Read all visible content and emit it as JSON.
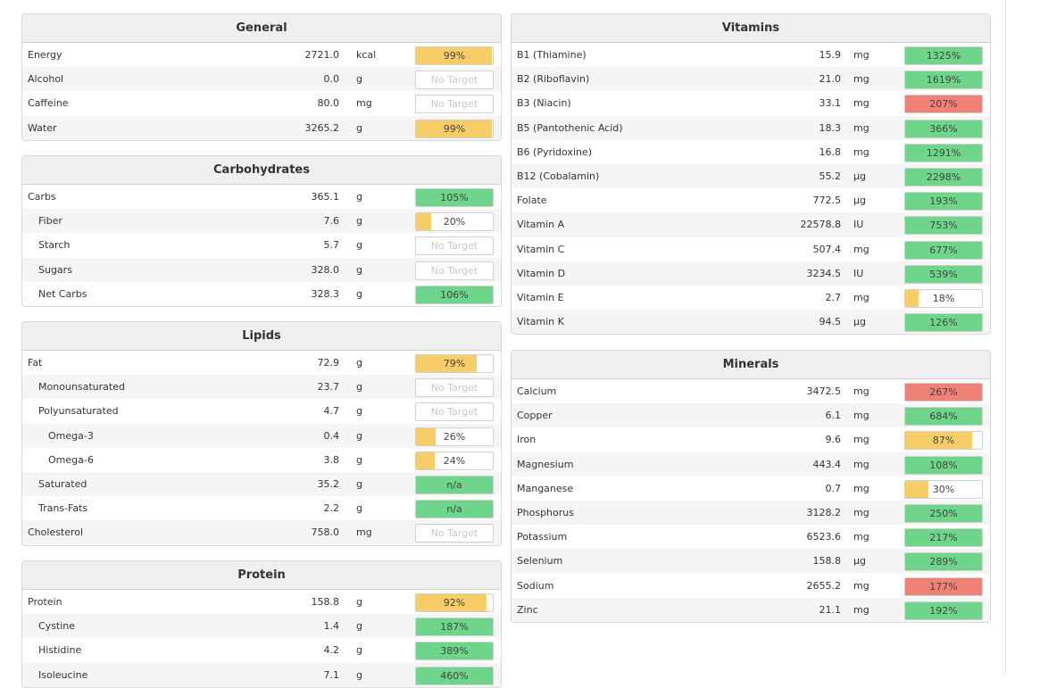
{
  "colors": {
    "green": "#6fd58a",
    "yellow": "#f7cd67",
    "red": "#ef8176"
  },
  "no_target_label": "No Target",
  "left": [
    {
      "title": "General",
      "rows": [
        {
          "name": "Energy",
          "amount": "2721.0",
          "unit": "kcal",
          "label": "99%",
          "fill": 0.99,
          "color": "yellow",
          "indent": 0
        },
        {
          "name": "Alcohol",
          "amount": "0.0",
          "unit": "g",
          "label": "No Target",
          "fill": 0,
          "color": "none",
          "indent": 0
        },
        {
          "name": "Caffeine",
          "amount": "80.0",
          "unit": "mg",
          "label": "No Target",
          "fill": 0,
          "color": "none",
          "indent": 0
        },
        {
          "name": "Water",
          "amount": "3265.2",
          "unit": "g",
          "label": "99%",
          "fill": 0.99,
          "color": "yellow",
          "indent": 0
        }
      ]
    },
    {
      "title": "Carbohydrates",
      "rows": [
        {
          "name": "Carbs",
          "amount": "365.1",
          "unit": "g",
          "label": "105%",
          "fill": 1,
          "color": "green",
          "indent": 0
        },
        {
          "name": "Fiber",
          "amount": "7.6",
          "unit": "g",
          "label": "20%",
          "fill": 0.2,
          "color": "yellow",
          "indent": 1
        },
        {
          "name": "Starch",
          "amount": "5.7",
          "unit": "g",
          "label": "No Target",
          "fill": 0,
          "color": "none",
          "indent": 1
        },
        {
          "name": "Sugars",
          "amount": "328.0",
          "unit": "g",
          "label": "No Target",
          "fill": 0,
          "color": "none",
          "indent": 1
        },
        {
          "name": "Net Carbs",
          "amount": "328.3",
          "unit": "g",
          "label": "106%",
          "fill": 1,
          "color": "green",
          "indent": 1
        }
      ]
    },
    {
      "title": "Lipids",
      "rows": [
        {
          "name": "Fat",
          "amount": "72.9",
          "unit": "g",
          "label": "79%",
          "fill": 0.79,
          "color": "yellow",
          "indent": 0
        },
        {
          "name": "Monounsaturated",
          "amount": "23.7",
          "unit": "g",
          "label": "No Target",
          "fill": 0,
          "color": "none",
          "indent": 1
        },
        {
          "name": "Polyunsaturated",
          "amount": "4.7",
          "unit": "g",
          "label": "No Target",
          "fill": 0,
          "color": "none",
          "indent": 1
        },
        {
          "name": "Omega-3",
          "amount": "0.4",
          "unit": "g",
          "label": "26%",
          "fill": 0.26,
          "color": "yellow",
          "indent": 2
        },
        {
          "name": "Omega-6",
          "amount": "3.8",
          "unit": "g",
          "label": "24%",
          "fill": 0.24,
          "color": "yellow",
          "indent": 2
        },
        {
          "name": "Saturated",
          "amount": "35.2",
          "unit": "g",
          "label": "n/a",
          "fill": 1,
          "color": "green",
          "indent": 1
        },
        {
          "name": "Trans-Fats",
          "amount": "2.2",
          "unit": "g",
          "label": "n/a",
          "fill": 1,
          "color": "green",
          "indent": 1
        },
        {
          "name": "Cholesterol",
          "amount": "758.0",
          "unit": "mg",
          "label": "No Target",
          "fill": 0,
          "color": "none",
          "indent": 0
        }
      ]
    },
    {
      "title": "Protein",
      "rows": [
        {
          "name": "Protein",
          "amount": "158.8",
          "unit": "g",
          "label": "92%",
          "fill": 0.92,
          "color": "yellow",
          "indent": 0
        },
        {
          "name": "Cystine",
          "amount": "1.4",
          "unit": "g",
          "label": "187%",
          "fill": 1,
          "color": "green",
          "indent": 1
        },
        {
          "name": "Histidine",
          "amount": "4.2",
          "unit": "g",
          "label": "389%",
          "fill": 1,
          "color": "green",
          "indent": 1
        },
        {
          "name": "Isoleucine",
          "amount": "7.1",
          "unit": "g",
          "label": "460%",
          "fill": 1,
          "color": "green",
          "indent": 1
        }
      ]
    }
  ],
  "right": [
    {
      "title": "Vitamins",
      "rows": [
        {
          "name": "B1 (Thiamine)",
          "amount": "15.9",
          "unit": "mg",
          "label": "1325%",
          "fill": 1,
          "color": "green",
          "indent": 0
        },
        {
          "name": "B2 (Riboflavin)",
          "amount": "21.0",
          "unit": "mg",
          "label": "1619%",
          "fill": 1,
          "color": "green",
          "indent": 0
        },
        {
          "name": "B3 (Niacin)",
          "amount": "33.1",
          "unit": "mg",
          "label": "207%",
          "fill": 1,
          "color": "red",
          "indent": 0
        },
        {
          "name": "B5 (Pantothenic Acid)",
          "amount": "18.3",
          "unit": "mg",
          "label": "366%",
          "fill": 1,
          "color": "green",
          "indent": 0
        },
        {
          "name": "B6 (Pyridoxine)",
          "amount": "16.8",
          "unit": "mg",
          "label": "1291%",
          "fill": 1,
          "color": "green",
          "indent": 0
        },
        {
          "name": "B12 (Cobalamin)",
          "amount": "55.2",
          "unit": "µg",
          "label": "2298%",
          "fill": 1,
          "color": "green",
          "indent": 0
        },
        {
          "name": "Folate",
          "amount": "772.5",
          "unit": "µg",
          "label": "193%",
          "fill": 1,
          "color": "green",
          "indent": 0
        },
        {
          "name": "Vitamin A",
          "amount": "22578.8",
          "unit": "IU",
          "label": "753%",
          "fill": 1,
          "color": "green",
          "indent": 0
        },
        {
          "name": "Vitamin C",
          "amount": "507.4",
          "unit": "mg",
          "label": "677%",
          "fill": 1,
          "color": "green",
          "indent": 0
        },
        {
          "name": "Vitamin D",
          "amount": "3234.5",
          "unit": "IU",
          "label": "539%",
          "fill": 1,
          "color": "green",
          "indent": 0
        },
        {
          "name": "Vitamin E",
          "amount": "2.7",
          "unit": "mg",
          "label": "18%",
          "fill": 0.18,
          "color": "yellow",
          "indent": 0
        },
        {
          "name": "Vitamin K",
          "amount": "94.5",
          "unit": "µg",
          "label": "126%",
          "fill": 1,
          "color": "green",
          "indent": 0
        }
      ]
    },
    {
      "title": "Minerals",
      "rows": [
        {
          "name": "Calcium",
          "amount": "3472.5",
          "unit": "mg",
          "label": "267%",
          "fill": 1,
          "color": "red",
          "indent": 0
        },
        {
          "name": "Copper",
          "amount": "6.1",
          "unit": "mg",
          "label": "684%",
          "fill": 1,
          "color": "green",
          "indent": 0
        },
        {
          "name": "Iron",
          "amount": "9.6",
          "unit": "mg",
          "label": "87%",
          "fill": 0.87,
          "color": "yellow",
          "indent": 0
        },
        {
          "name": "Magnesium",
          "amount": "443.4",
          "unit": "mg",
          "label": "108%",
          "fill": 1,
          "color": "green",
          "indent": 0
        },
        {
          "name": "Manganese",
          "amount": "0.7",
          "unit": "mg",
          "label": "30%",
          "fill": 0.3,
          "color": "yellow",
          "indent": 0
        },
        {
          "name": "Phosphorus",
          "amount": "3128.2",
          "unit": "mg",
          "label": "250%",
          "fill": 1,
          "color": "green",
          "indent": 0
        },
        {
          "name": "Potassium",
          "amount": "6523.6",
          "unit": "mg",
          "label": "217%",
          "fill": 1,
          "color": "green",
          "indent": 0
        },
        {
          "name": "Selenium",
          "amount": "158.8",
          "unit": "µg",
          "label": "289%",
          "fill": 1,
          "color": "green",
          "indent": 0
        },
        {
          "name": "Sodium",
          "amount": "2655.2",
          "unit": "mg",
          "label": "177%",
          "fill": 1,
          "color": "red",
          "indent": 0
        },
        {
          "name": "Zinc",
          "amount": "21.1",
          "unit": "mg",
          "label": "192%",
          "fill": 1,
          "color": "green",
          "indent": 0
        }
      ]
    }
  ]
}
